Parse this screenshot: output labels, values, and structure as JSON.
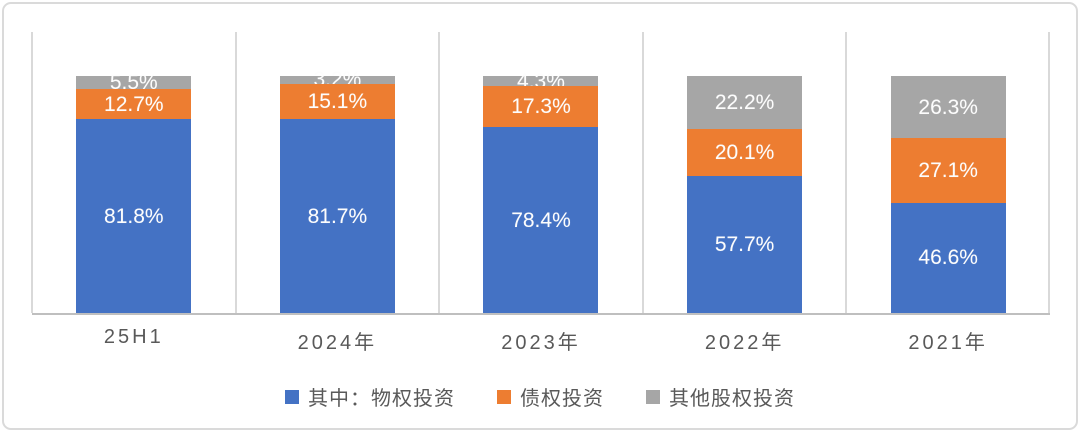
{
  "chart_data": {
    "type": "bar",
    "stacked": true,
    "orientation": "vertical",
    "categories": [
      "25H1",
      "2024年",
      "2023年",
      "2022年",
      "2021年"
    ],
    "series": [
      {
        "name": "其中：物权投资",
        "color": "#4472C4",
        "values": [
          81.8,
          81.7,
          78.4,
          57.7,
          46.6
        ]
      },
      {
        "name": "债权投资",
        "color": "#ED7D31",
        "values": [
          12.7,
          15.1,
          17.3,
          20.1,
          27.1
        ]
      },
      {
        "name": "其他股权投资",
        "color": "#A6A6A6",
        "values": [
          5.5,
          3.2,
          4.3,
          22.2,
          26.3
        ]
      }
    ],
    "data_labels": [
      [
        "81.8%",
        "81.7%",
        "78.4%",
        "57.7%",
        "46.6%"
      ],
      [
        "12.7%",
        "15.1%",
        "17.3%",
        "20.1%",
        "27.1%"
      ],
      [
        "5.5%",
        "3.2%",
        "4.3%",
        "22.2%",
        "26.3%"
      ]
    ],
    "value_suffix": "%",
    "ylim": [
      0,
      100
    ],
    "grid": "vertical category separators only",
    "legend_position": "bottom-center",
    "title": "",
    "xlabel": "",
    "ylabel": ""
  },
  "style_colors": {
    "gridline": "#d9d9d9",
    "axis_line": "#bfbfbf",
    "axis_text": "#595959",
    "value_text": "#fdfdfd",
    "frame_border": "#dadada",
    "background": "#ffffff"
  }
}
